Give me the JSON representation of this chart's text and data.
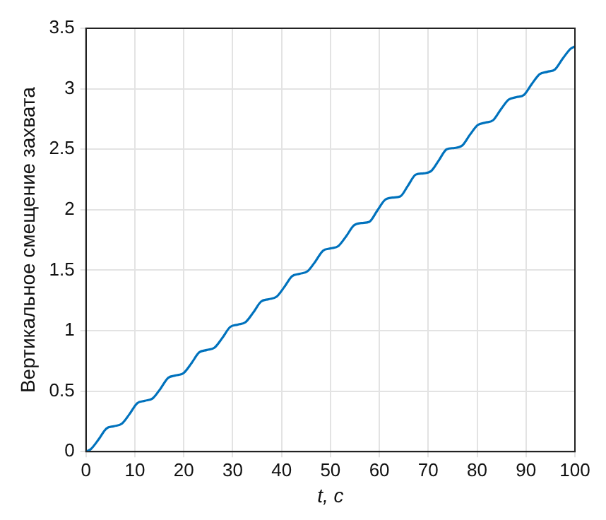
{
  "chart_data": {
    "type": "line",
    "xlabel": "t, с",
    "ylabel": "Вертикальное смещение захвата",
    "xlim": [
      0,
      100
    ],
    "xticks": [
      0,
      10,
      20,
      30,
      40,
      50,
      60,
      70,
      80,
      90,
      100
    ],
    "ylim": [
      0,
      3.5
    ],
    "yticks": [
      0,
      0.5,
      1,
      1.5,
      2,
      2.5,
      3,
      3.5
    ],
    "grid": true,
    "legend": false,
    "marker": "none",
    "line_style": "solid",
    "series": [
      {
        "color": "#0072bd",
        "x": [
          0,
          0.98,
          2.57,
          4.15,
          5.73,
          7.31,
          8.9,
          10.48,
          12.06,
          13.64,
          15.23,
          16.81,
          18.39,
          19.97,
          21.56,
          23.14,
          24.72,
          26.3,
          27.89,
          29.47,
          31.05,
          32.63,
          34.22,
          35.8,
          37.38,
          38.96,
          40.55,
          42.13,
          43.71,
          45.29,
          46.88,
          48.46,
          50.04,
          51.62,
          53.21,
          54.79,
          56.37,
          57.95,
          59.54,
          61.12,
          62.7,
          64.28,
          65.87,
          67.45,
          69.03,
          70.61,
          72.2,
          73.78,
          75.36,
          76.94,
          78.53,
          80.11,
          81.69,
          83.27,
          84.86,
          86.44,
          88.02,
          89.6,
          91.19,
          92.77,
          94.35,
          95.93,
          97.52,
          99.1,
          100
        ],
        "values": [
          0,
          0.02,
          0.1,
          0.19,
          0.21,
          0.23,
          0.31,
          0.4,
          0.42,
          0.44,
          0.52,
          0.61,
          0.63,
          0.65,
          0.73,
          0.82,
          0.84,
          0.86,
          0.94,
          1.03,
          1.05,
          1.07,
          1.15,
          1.24,
          1.26,
          1.28,
          1.36,
          1.45,
          1.47,
          1.49,
          1.57,
          1.66,
          1.68,
          1.7,
          1.78,
          1.87,
          1.89,
          1.9,
          1.99,
          2.08,
          2.1,
          2.11,
          2.2,
          2.29,
          2.3,
          2.32,
          2.41,
          2.5,
          2.51,
          2.53,
          2.62,
          2.7,
          2.72,
          2.74,
          2.83,
          2.91,
          2.93,
          2.95,
          3.04,
          3.12,
          3.14,
          3.16,
          3.25,
          3.33,
          3.35
        ]
      }
    ]
  }
}
